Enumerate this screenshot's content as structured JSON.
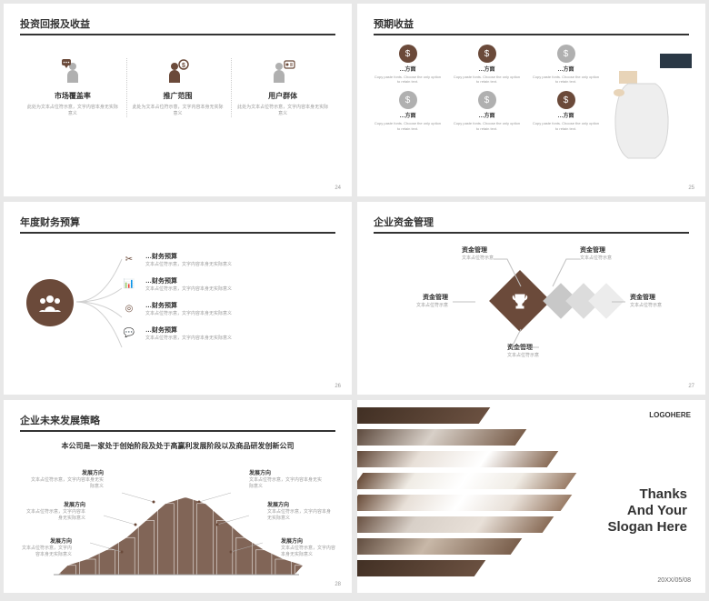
{
  "colors": {
    "accent": "#6b4a3a",
    "gray": "#b8b8b8",
    "light": "#d8d8d8",
    "text": "#333333",
    "muted": "#999999"
  },
  "slide1": {
    "title": "投资回报及收益",
    "page": "24",
    "items": [
      {
        "label": "市场覆盖率",
        "desc": "此处为文本占位符示意，文字内容本身无实际意义"
      },
      {
        "label": "推广范围",
        "desc": "此处为文本占位符示意，文字内容本身无实际意义"
      },
      {
        "label": "用户群体",
        "desc": "此处为文本占位符示意，文字内容本身无实际意义"
      }
    ]
  },
  "slide2": {
    "title": "预期收益",
    "page": "25",
    "items": [
      {
        "color": "#6b4a3a",
        "label": "…方面",
        "desc": "Copy paste fonts. Choose the only option to retain text."
      },
      {
        "color": "#6b4a3a",
        "label": "…方面",
        "desc": "Copy paste fonts. Choose the only option to retain text."
      },
      {
        "color": "#b0b0b0",
        "label": "…方面",
        "desc": "Copy paste fonts. Choose the only option to retain text."
      },
      {
        "color": "#b0b0b0",
        "label": "…方面",
        "desc": "Copy paste fonts. Choose the only option to retain text."
      },
      {
        "color": "#b0b0b0",
        "label": "…方面",
        "desc": "Copy paste fonts. Choose the only option to retain text."
      },
      {
        "color": "#6b4a3a",
        "label": "…方面",
        "desc": "Copy paste fonts. Choose the only option to retain text."
      }
    ]
  },
  "slide3": {
    "title": "年度财务预算",
    "page": "26",
    "items": [
      {
        "h": "…财务预算",
        "d": "文本占位符示意，文字内容本身无实际意义"
      },
      {
        "h": "…财务预算",
        "d": "文本占位符示意，文字内容本身无实际意义"
      },
      {
        "h": "…财务预算",
        "d": "文本占位符示意，文字内容本身无实际意义"
      },
      {
        "h": "…财务预算",
        "d": "文本占位符示意，文字内容本身无实际意义"
      }
    ]
  },
  "slide4": {
    "title": "企业资金管理",
    "page": "27",
    "labels": [
      "资金管理",
      "资金管理",
      "资金管理",
      "资金管理",
      "资金管理"
    ],
    "desc": "文本占位符示意"
  },
  "slide5": {
    "title": "企业未来发展策略",
    "page": "28",
    "subtitle": "本公司是一家处于创始阶段及处于高赢利发展阶段以及商品研发创新公司",
    "label": "发展方向",
    "desc": "文本占位符示意，文字内容本身无实际意义",
    "bars": [
      12,
      20,
      32,
      48,
      70,
      92,
      100,
      92,
      70,
      48,
      32,
      20,
      12
    ]
  },
  "slide6": {
    "logo": "LOGOHERE",
    "thanks_l1": "Thanks",
    "thanks_l2": "And Your",
    "thanks_l3": "Slogan Here",
    "date": "20XX/05/08"
  }
}
